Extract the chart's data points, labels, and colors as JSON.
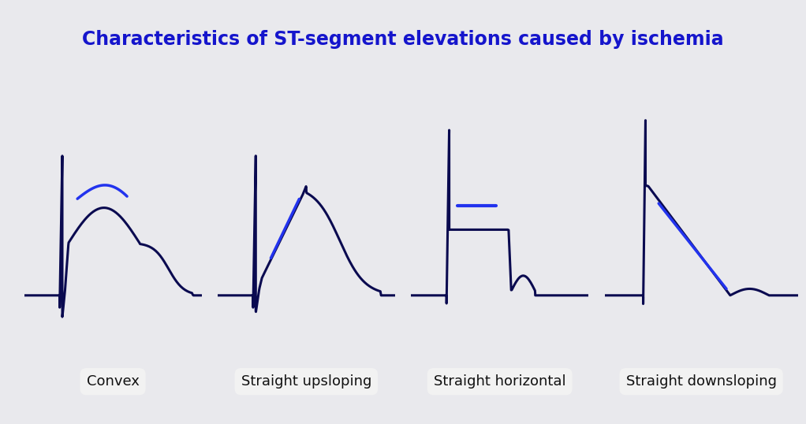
{
  "title": "Characteristics of ST-segment elevations caused by ischemia",
  "title_color": "#1515cc",
  "title_fontsize": 17,
  "background_color": "#e9e9ed",
  "ecg_color": "#0a0a50",
  "highlight_color": "#2233ee",
  "label_fontsize": 13,
  "labels": [
    "Convex",
    "Straight upsloping",
    "Straight horizontal",
    "Straight downsloping"
  ],
  "label_bg": "#f2f2f2"
}
